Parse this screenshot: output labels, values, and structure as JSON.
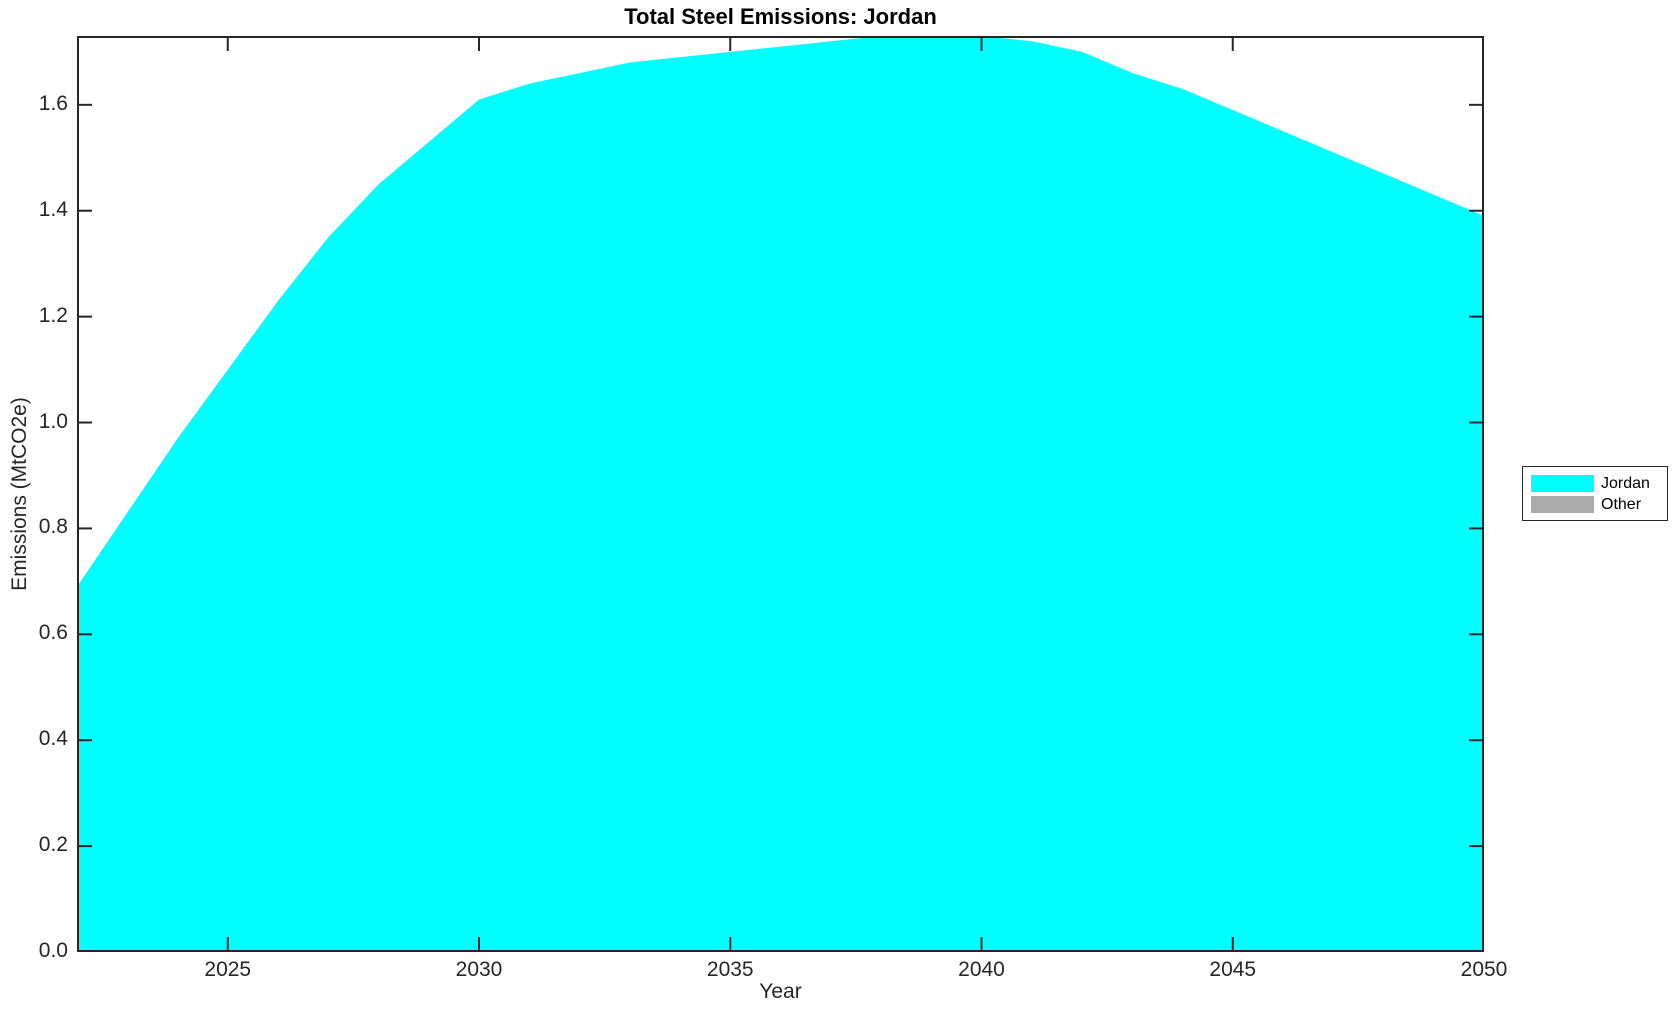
{
  "chart_data": {
    "type": "area",
    "stacked": true,
    "title": "Total Steel Emissions: Jordan",
    "xlabel": "Year",
    "ylabel": "Emissions (MtCO2e)",
    "xlim": [
      2022,
      2050
    ],
    "ylim": [
      0,
      1.73
    ],
    "xticks": [
      "2025",
      "2030",
      "2035",
      "2040",
      "2045",
      "2050"
    ],
    "yticks": [
      "0.0",
      "0.2",
      "0.4",
      "0.6",
      "0.8",
      "1.0",
      "1.2",
      "1.4",
      "1.6"
    ],
    "grid": false,
    "legend_position": "outside-right-center",
    "x": [
      2022,
      2023,
      2024,
      2025,
      2026,
      2027,
      2028,
      2029,
      2030,
      2031,
      2032,
      2033,
      2034,
      2035,
      2036,
      2037,
      2038,
      2039,
      2040,
      2041,
      2042,
      2043,
      2044,
      2045,
      2046,
      2047,
      2048,
      2049,
      2050
    ],
    "series": [
      {
        "name": "Jordan",
        "color": "#00ffff",
        "values": [
          0.69,
          0.83,
          0.97,
          1.1,
          1.23,
          1.35,
          1.45,
          1.53,
          1.61,
          1.64,
          1.66,
          1.68,
          1.69,
          1.7,
          1.71,
          1.72,
          1.73,
          1.73,
          1.73,
          1.72,
          1.7,
          1.66,
          1.63,
          1.59,
          1.55,
          1.51,
          1.47,
          1.43,
          1.39
        ]
      },
      {
        "name": "Other",
        "color": "#ababab",
        "values": [
          0,
          0,
          0,
          0,
          0,
          0,
          0,
          0,
          0,
          0,
          0,
          0,
          0,
          0,
          0,
          0,
          0,
          0,
          0,
          0,
          0,
          0,
          0,
          0,
          0,
          0,
          0,
          0,
          0
        ]
      }
    ]
  },
  "legend": {
    "items": [
      {
        "label": "Jordan",
        "color": "#00ffff"
      },
      {
        "label": "Other",
        "color": "#ababab"
      }
    ]
  },
  "colors": {
    "axis": "#262626",
    "title": "#000000",
    "background": "#ffffff",
    "area_fill": "#00ffff"
  }
}
